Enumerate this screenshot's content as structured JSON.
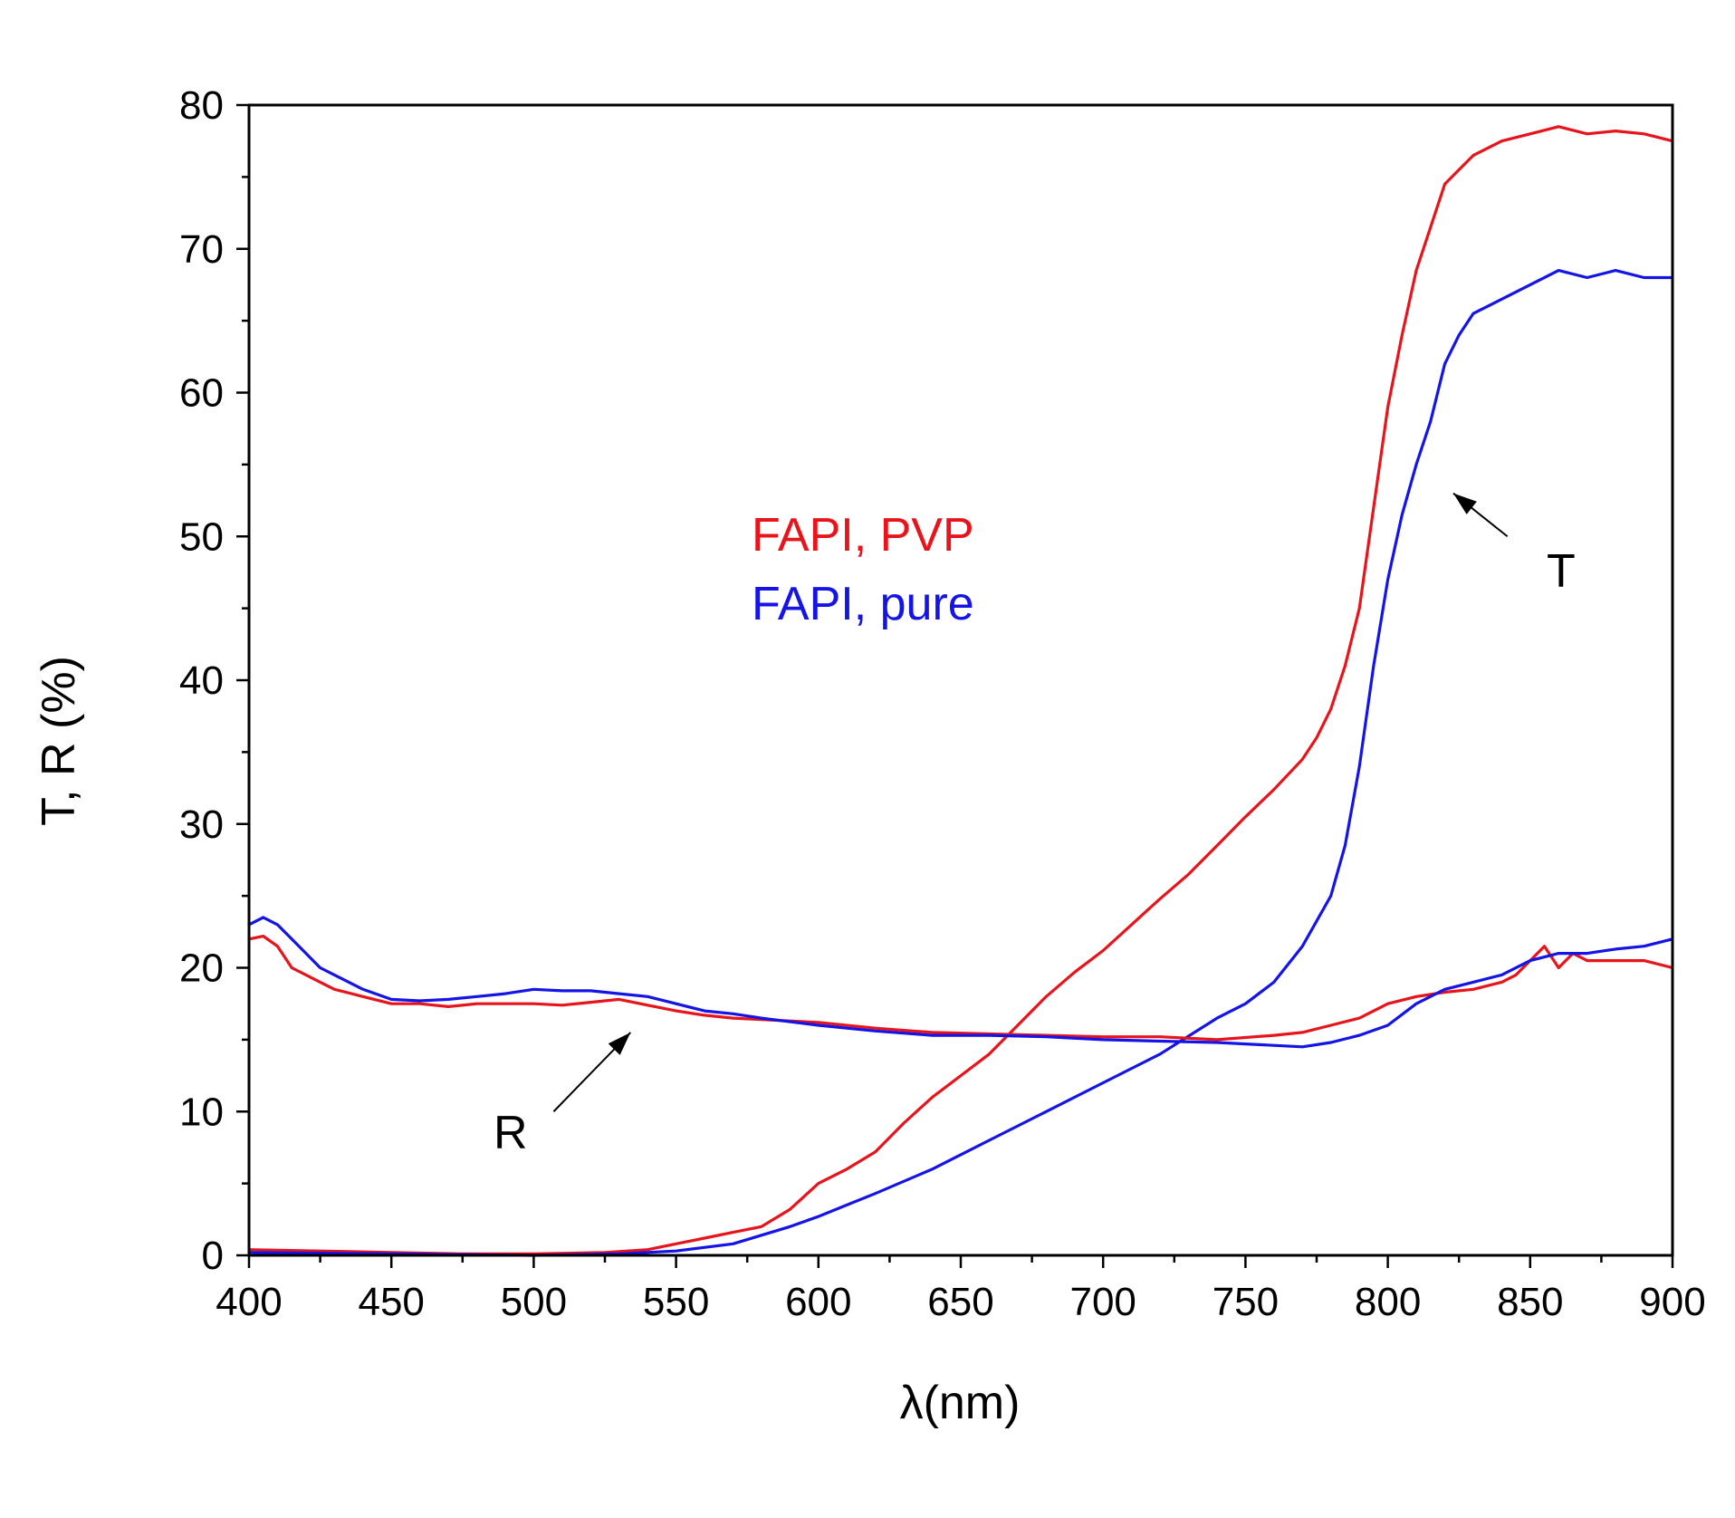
{
  "chart_data": {
    "type": "line",
    "title": "",
    "xlabel": "λ(nm)",
    "ylabel": "T, R (%)",
    "xlim": [
      400,
      900
    ],
    "ylim": [
      0,
      80
    ],
    "xticks": [
      400,
      450,
      500,
      550,
      600,
      650,
      700,
      750,
      800,
      850,
      900
    ],
    "yticks": [
      0,
      10,
      20,
      30,
      40,
      50,
      60,
      70,
      80
    ],
    "legend": {
      "placement": "center-left",
      "entries": [
        {
          "label": "FAPI, PVP",
          "color": "#e8141c"
        },
        {
          "label": "FAPI, pure",
          "color": "#1414e6"
        }
      ]
    },
    "annotations": [
      {
        "text": "T",
        "from": [
          842,
          50
        ],
        "to": [
          823,
          53
        ]
      },
      {
        "text": "R",
        "from": [
          507,
          10
        ],
        "to": [
          534,
          15.5
        ]
      }
    ],
    "series": [
      {
        "name": "FAPI, PVP — T",
        "color": "#e8141c",
        "x": [
          400,
          425,
          450,
          475,
          500,
          525,
          540,
          550,
          560,
          570,
          580,
          590,
          600,
          610,
          620,
          630,
          640,
          650,
          660,
          670,
          680,
          690,
          700,
          710,
          720,
          730,
          740,
          750,
          760,
          770,
          775,
          780,
          785,
          790,
          795,
          800,
          805,
          810,
          815,
          820,
          825,
          830,
          840,
          850,
          860,
          870,
          880,
          890,
          900
        ],
        "y": [
          0.4,
          0.3,
          0.2,
          0.1,
          0.1,
          0.2,
          0.4,
          0.8,
          1.2,
          1.6,
          2.0,
          3.2,
          5.0,
          6.0,
          7.2,
          9.2,
          11.0,
          12.5,
          14.0,
          16.0,
          18.0,
          19.7,
          21.2,
          23.0,
          24.8,
          26.5,
          28.5,
          30.5,
          32.4,
          34.5,
          36.0,
          38.0,
          41.0,
          45.0,
          52.0,
          59.0,
          64.0,
          68.5,
          71.5,
          74.5,
          75.5,
          76.5,
          77.5,
          78.0,
          78.5,
          78.0,
          78.2,
          78.0,
          77.5
        ]
      },
      {
        "name": "FAPI, pure — T",
        "color": "#1414e6",
        "x": [
          400,
          450,
          500,
          530,
          550,
          570,
          580,
          590,
          600,
          610,
          620,
          640,
          660,
          680,
          700,
          720,
          740,
          750,
          760,
          770,
          780,
          785,
          790,
          795,
          800,
          805,
          810,
          815,
          820,
          825,
          830,
          840,
          850,
          860,
          870,
          880,
          890,
          900
        ],
        "y": [
          0.2,
          0.1,
          0.0,
          0.1,
          0.3,
          0.8,
          1.4,
          2.0,
          2.7,
          3.5,
          4.3,
          6.0,
          8.0,
          10.0,
          12.0,
          14.0,
          16.5,
          17.5,
          19.0,
          21.5,
          25.0,
          28.5,
          34.0,
          41.0,
          47.0,
          51.5,
          55.0,
          58.0,
          62.0,
          64.0,
          65.5,
          66.5,
          67.5,
          68.5,
          68.0,
          68.5,
          68.0,
          68.0
        ]
      },
      {
        "name": "FAPI, PVP — R",
        "color": "#e8141c",
        "x": [
          400,
          405,
          410,
          415,
          420,
          425,
          430,
          440,
          450,
          460,
          470,
          480,
          490,
          500,
          510,
          520,
          530,
          540,
          550,
          560,
          570,
          580,
          600,
          620,
          640,
          660,
          680,
          700,
          720,
          740,
          760,
          770,
          780,
          790,
          800,
          810,
          820,
          830,
          840,
          845,
          850,
          855,
          860,
          865,
          870,
          880,
          890,
          900
        ],
        "y": [
          22.0,
          22.2,
          21.5,
          20.0,
          19.5,
          19.0,
          18.5,
          18.0,
          17.5,
          17.5,
          17.3,
          17.5,
          17.5,
          17.5,
          17.4,
          17.6,
          17.8,
          17.4,
          17.0,
          16.7,
          16.5,
          16.4,
          16.2,
          15.8,
          15.5,
          15.4,
          15.3,
          15.2,
          15.2,
          15.0,
          15.3,
          15.5,
          16.0,
          16.5,
          17.5,
          18.0,
          18.3,
          18.5,
          19.0,
          19.5,
          20.5,
          21.5,
          20.0,
          21.0,
          20.5,
          20.5,
          20.5,
          20.0
        ]
      },
      {
        "name": "FAPI, pure — R",
        "color": "#1414e6",
        "x": [
          400,
          405,
          410,
          415,
          420,
          425,
          430,
          440,
          450,
          460,
          470,
          480,
          490,
          500,
          510,
          520,
          530,
          540,
          550,
          560,
          570,
          580,
          600,
          620,
          640,
          660,
          680,
          700,
          720,
          740,
          750,
          760,
          770,
          780,
          790,
          800,
          810,
          820,
          830,
          840,
          850,
          860,
          870,
          880,
          890,
          900
        ],
        "y": [
          23.0,
          23.5,
          23.0,
          22.0,
          21.0,
          20.0,
          19.5,
          18.5,
          17.8,
          17.7,
          17.8,
          18.0,
          18.2,
          18.5,
          18.4,
          18.4,
          18.2,
          18.0,
          17.5,
          17.0,
          16.8,
          16.5,
          16.0,
          15.6,
          15.3,
          15.3,
          15.2,
          15.0,
          14.9,
          14.8,
          14.7,
          14.6,
          14.5,
          14.8,
          15.3,
          16.0,
          17.5,
          18.5,
          19.0,
          19.5,
          20.5,
          21.0,
          21.0,
          21.3,
          21.5,
          22.0
        ]
      }
    ]
  }
}
